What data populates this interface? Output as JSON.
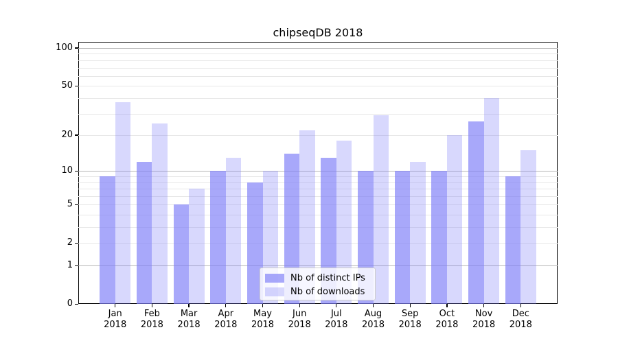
{
  "chart_data": {
    "type": "bar",
    "title": "chipseqDB 2018",
    "categories": [
      "Jan",
      "Feb",
      "Mar",
      "Apr",
      "May",
      "Jun",
      "Jul",
      "Aug",
      "Sep",
      "Oct",
      "Nov",
      "Dec"
    ],
    "category_year": "2018",
    "series": [
      {
        "name": "Nb of distinct IPs",
        "values": [
          9,
          12,
          5,
          10,
          8,
          14,
          13,
          10,
          10,
          10,
          26,
          9
        ],
        "base_color": "#7f7ff7",
        "alpha": 0.68
      },
      {
        "name": "Nb of downloads",
        "values": [
          37,
          25,
          7,
          13,
          10,
          22,
          18,
          29,
          12,
          20,
          40,
          15
        ],
        "base_color": "#7f7ff7",
        "alpha": 0.3
      }
    ],
    "yscale": "log1p",
    "ylim": [
      0,
      112
    ],
    "yticks": [
      0,
      1,
      2,
      5,
      10,
      20,
      50,
      100
    ],
    "grid": true,
    "gridline_major_values": [
      1,
      10,
      100
    ],
    "gridline_minor_values": [
      2,
      3,
      4,
      5,
      6,
      7,
      8,
      9,
      20,
      30,
      40,
      50,
      60,
      70,
      80,
      90
    ],
    "colors": {
      "grid_major": "#b4b4b4",
      "grid_minor": "#e7e7e7",
      "spine": "#000000",
      "background": "#ffffff"
    },
    "legend_position": "lower center"
  }
}
